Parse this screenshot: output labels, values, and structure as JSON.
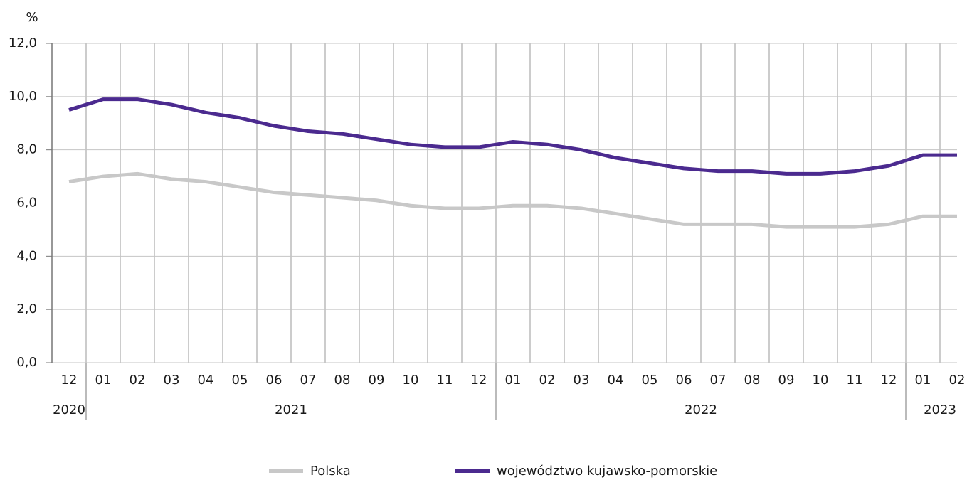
{
  "chart_data": {
    "type": "line",
    "y_label": "%",
    "categories": [
      "12",
      "01",
      "02",
      "03",
      "04",
      "05",
      "06",
      "07",
      "08",
      "09",
      "10",
      "11",
      "12",
      "01",
      "02",
      "03",
      "04",
      "05",
      "06",
      "07",
      "08",
      "09",
      "10",
      "11",
      "12",
      "01",
      "02"
    ],
    "years": [
      "2020",
      "2021",
      "2022",
      "2023"
    ],
    "series": [
      {
        "name": "Polska",
        "color": "#c8c8c8",
        "values": [
          6.8,
          7.0,
          7.1,
          6.9,
          6.8,
          6.6,
          6.4,
          6.3,
          6.2,
          6.1,
          5.9,
          5.8,
          5.8,
          5.9,
          5.9,
          5.8,
          5.6,
          5.4,
          5.2,
          5.2,
          5.2,
          5.1,
          5.1,
          5.1,
          5.2,
          5.5,
          5.5
        ]
      },
      {
        "name": "województwo kujawsko-pomorskie",
        "color": "#4b2a8f",
        "values": [
          9.5,
          9.9,
          9.9,
          9.7,
          9.4,
          9.2,
          8.9,
          8.7,
          8.6,
          8.4,
          8.2,
          8.1,
          8.1,
          8.3,
          8.2,
          8.0,
          7.7,
          7.5,
          7.3,
          7.2,
          7.2,
          7.1,
          7.1,
          7.2,
          7.4,
          7.8,
          7.8
        ]
      }
    ],
    "ylim": [
      0,
      12
    ],
    "yticks": [
      {
        "value": 0,
        "label": "0,0"
      },
      {
        "value": 2,
        "label": "2,0"
      },
      {
        "value": 4,
        "label": "4,0"
      },
      {
        "value": 6,
        "label": "6,0"
      },
      {
        "value": 8,
        "label": "8,0"
      },
      {
        "value": 10,
        "label": "10,0"
      },
      {
        "value": 12,
        "label": "12,0"
      }
    ],
    "grid": true,
    "legend": "bottom"
  }
}
